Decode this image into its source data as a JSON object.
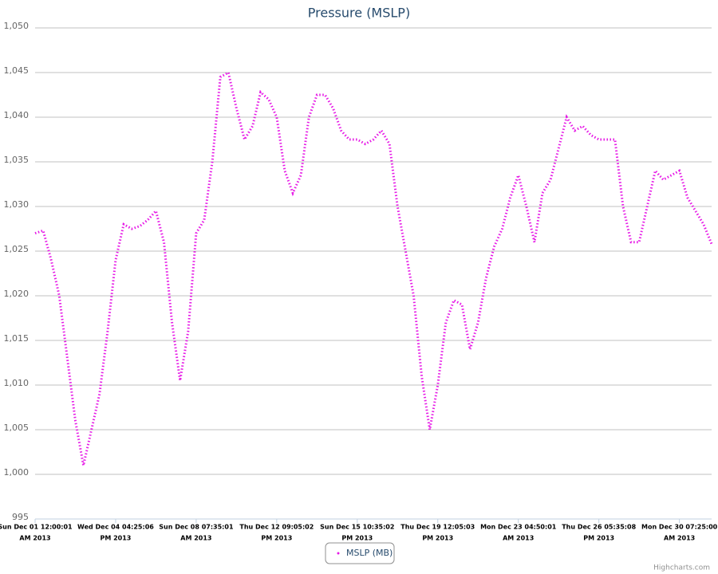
{
  "chart_data": {
    "type": "line",
    "title": "Pressure (MSLP)",
    "categories": [
      [
        "Sun Dec 01 12:00:01",
        "AM 2013"
      ],
      null,
      null,
      null,
      null,
      null,
      null,
      null,
      null,
      null,
      [
        "Wed Dec 04 04:25:06",
        "PM 2013"
      ],
      null,
      null,
      null,
      null,
      null,
      null,
      null,
      null,
      null,
      [
        "Sun Dec 08 07:35:01",
        "AM 2013"
      ],
      null,
      null,
      null,
      null,
      null,
      null,
      null,
      null,
      null,
      [
        "Thu Dec 12 09:05:02",
        "PM 2013"
      ],
      null,
      null,
      null,
      null,
      null,
      null,
      null,
      null,
      null,
      [
        "Sun Dec 15 10:35:02",
        "PM 2013"
      ],
      null,
      null,
      null,
      null,
      null,
      null,
      null,
      null,
      null,
      [
        "Thu Dec 19 12:05:03",
        "PM 2013"
      ],
      null,
      null,
      null,
      null,
      null,
      null,
      null,
      null,
      null,
      [
        "Mon Dec 23 04:50:01",
        "AM 2013"
      ],
      null,
      null,
      null,
      null,
      null,
      null,
      null,
      null,
      null,
      [
        "Thu Dec 26 05:35:08",
        "PM 2013"
      ],
      null,
      null,
      null,
      null,
      null,
      null,
      null,
      null,
      null,
      [
        "Mon Dec 30 07:25:00",
        "AM 2013"
      ],
      null,
      null,
      null,
      null
    ],
    "series": [
      {
        "name": "MSLP (MB)",
        "color": "#e619e6",
        "values": [
          1027,
          1027.3,
          1024,
          1020,
          1013,
          1006,
          1001,
          1005,
          1009,
          1016,
          1024,
          1028,
          1027.5,
          1027.8,
          1028.5,
          1029.5,
          1026,
          1017,
          1010.5,
          1016,
          1027,
          1028.5,
          1035,
          1044.5,
          1045,
          1041,
          1037.5,
          1039,
          1042.8,
          1042,
          1040,
          1034,
          1031.5,
          1033.5,
          1040,
          1042.5,
          1042.5,
          1041,
          1038.5,
          1037.5,
          1037.5,
          1037,
          1037.5,
          1038.5,
          1037,
          1030,
          1025,
          1020,
          1011,
          1005,
          1010,
          1017,
          1019.5,
          1019,
          1014,
          1017,
          1022,
          1025.5,
          1027.5,
          1031,
          1033.5,
          1030,
          1026,
          1031.5,
          1033,
          1036.5,
          1040,
          1038.5,
          1039,
          1038,
          1037.5,
          1037.5,
          1037.5,
          1030,
          1026,
          1026,
          1030,
          1034,
          1033,
          1033.5,
          1034,
          1031,
          1029.5,
          1028,
          1025.8
        ]
      }
    ],
    "ylim": [
      995,
      1050
    ],
    "yticks": [
      995,
      {
        "value": 1000,
        "label": "1,000"
      },
      {
        "value": 1005,
        "label": "1,005"
      },
      {
        "value": 1010,
        "label": "1,010"
      },
      {
        "value": 1015,
        "label": "1,015"
      },
      {
        "value": 1020,
        "label": "1,020"
      },
      {
        "value": 1025,
        "label": "1,025"
      },
      {
        "value": 1030,
        "label": "1,030"
      },
      {
        "value": 1035,
        "label": "1,035"
      },
      {
        "value": 1040,
        "label": "1,040"
      },
      {
        "value": 1045,
        "label": "1,045"
      },
      {
        "value": 1050,
        "label": "1,050"
      }
    ],
    "grid": true,
    "legend": "bottom",
    "credits": "Highcharts.com"
  }
}
